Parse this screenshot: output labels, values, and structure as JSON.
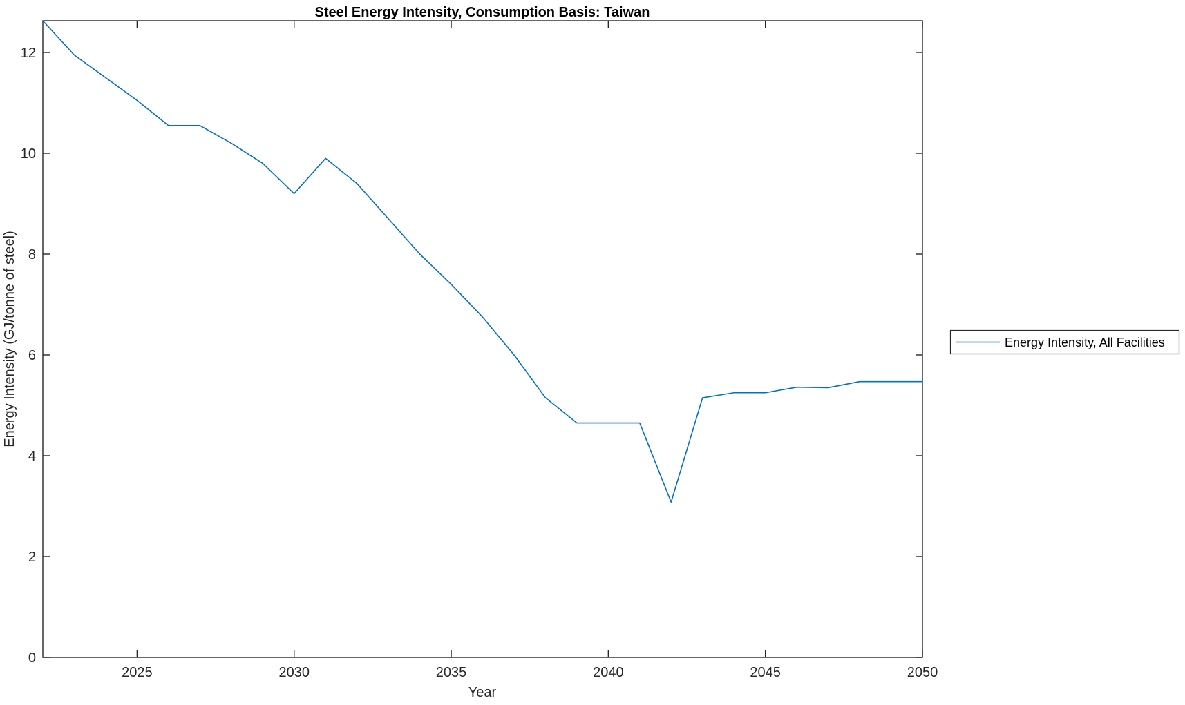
{
  "chart_data": {
    "type": "line",
    "title": "Steel Energy Intensity, Consumption Basis: Taiwan",
    "xlabel": "Year",
    "ylabel": "Energy Intensity (GJ/tonne of steel)",
    "xlim": [
      2022,
      2050
    ],
    "ylim": [
      0,
      12.63
    ],
    "xticks": [
      2025,
      2030,
      2035,
      2040,
      2045,
      2050
    ],
    "yticks": [
      0,
      2,
      4,
      6,
      8,
      10,
      12
    ],
    "grid": false,
    "box": true,
    "legend": {
      "position": "right-outside",
      "entries": [
        "Energy Intensity, All Facilities"
      ]
    },
    "series": [
      {
        "name": "Energy Intensity, All Facilities",
        "color": "#0072BD",
        "x": [
          2022,
          2023,
          2024,
          2025,
          2026,
          2027,
          2028,
          2029,
          2030,
          2031,
          2032,
          2033,
          2034,
          2035,
          2036,
          2037,
          2038,
          2039,
          2040,
          2041,
          2042,
          2043,
          2044,
          2045,
          2046,
          2047,
          2048,
          2049,
          2050
        ],
        "y": [
          12.63,
          11.95,
          11.5,
          11.05,
          10.55,
          10.55,
          10.2,
          9.8,
          9.2,
          9.9,
          9.4,
          8.7,
          8.0,
          7.4,
          6.75,
          6.0,
          5.15,
          4.65,
          4.65,
          4.65,
          3.08,
          5.15,
          5.25,
          5.25,
          5.36,
          5.35,
          5.47,
          5.47,
          5.47
        ]
      }
    ],
    "colors": {
      "background": "#ffffff",
      "axis": "#262626",
      "line": "#0072BD",
      "legend_border": "#262626"
    }
  }
}
